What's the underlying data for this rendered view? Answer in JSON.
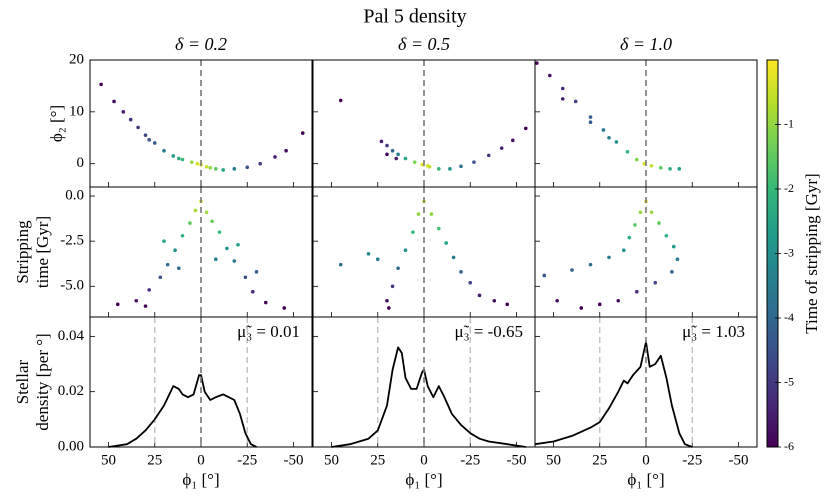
{
  "chart_data": {
    "type": "panel-grid",
    "title": "Pal 5 density",
    "xlabel": "ϕ₁ [°]",
    "xlim": [
      60,
      -60
    ],
    "xticks": [
      50,
      25,
      0,
      -25,
      -50
    ],
    "center_line": 0,
    "colormap": "viridis",
    "rows": [
      {
        "type": "scatter",
        "color_by": "c",
        "ylabel": [
          "ϕ₂ [°]"
        ],
        "ylim": [
          -4.5,
          20
        ],
        "yticks": [
          0,
          10,
          20
        ]
      },
      {
        "type": "scatter",
        "color_by": "y",
        "ylabel": [
          "Stripping",
          "time [Gyr]"
        ],
        "ylim": [
          -6.7,
          0.5
        ],
        "yticks": [
          {
            "value": 0,
            "label": "0.0"
          },
          {
            "value": -2.5,
            "label": "-2.5"
          },
          {
            "value": -5,
            "label": "-5.0"
          }
        ]
      },
      {
        "type": "line",
        "color": "#000000",
        "ylabel": [
          "Stellar",
          "density [per °]"
        ],
        "ylim": [
          0,
          0.047
        ],
        "yticks": [
          {
            "value": 0,
            "label": "0.00"
          },
          {
            "value": 0.02,
            "label": "0.02"
          },
          {
            "value": 0.04,
            "label": "0.04"
          }
        ],
        "guide_lines": [
          25,
          -25
        ]
      }
    ],
    "columns": [
      {
        "title": "δ = 0.2",
        "panels": [
          {
            "x": [
              54,
              47,
              42,
              38,
              34,
              30,
              25,
              20,
              15,
              10,
              5,
              2,
              0,
              -3,
              -8,
              -12,
              -18,
              -25,
              -32,
              -40,
              -46,
              -55,
              28,
              12,
              -5
            ],
            "y": [
              15.3,
              12,
              10,
              8.5,
              7,
              5.5,
              4,
              2.5,
              1.5,
              0.8,
              0.3,
              0,
              -0.2,
              -0.6,
              -1,
              -1.2,
              -1,
              -0.7,
              0,
              1.3,
              2.5,
              5.9,
              4.6,
              1,
              -0.8
            ],
            "c": [
              -6,
              -5.8,
              -5.5,
              -5.2,
              -5,
              -4.8,
              -4.2,
              -3.5,
              -2.8,
              -2,
              -1,
              -0.4,
              -0.2,
              -0.5,
              -1.5,
              -2.5,
              -3.5,
              -4.5,
              -5,
              -5.5,
              -5.8,
              -6,
              -4.5,
              -2.3,
              -1
            ]
          },
          {
            "x": [
              0,
              3,
              -3,
              6,
              -6,
              10,
              -10,
              14,
              -14,
              18,
              -18,
              22,
              -24,
              28,
              -28,
              35,
              -35,
              45,
              -45,
              20,
              -20,
              12,
              -8,
              30,
              -30
            ],
            "y": [
              -0.3,
              -0.8,
              -0.9,
              -1.5,
              -1.4,
              -2.2,
              -2,
              -3,
              -2.9,
              -3.8,
              -3.6,
              -4.5,
              -4.5,
              -5.2,
              -5.3,
              -5.8,
              -5.9,
              -6,
              -6.2,
              -2.5,
              -2.7,
              -4,
              -3.5,
              -6.1,
              -4.2
            ]
          },
          {
            "x": [
              50,
              40,
              35,
              30,
              25,
              20,
              15,
              12,
              10,
              7,
              4,
              1,
              0,
              -2,
              -5,
              -8,
              -12,
              -15,
              -18,
              -21,
              -24,
              -27,
              -30
            ],
            "y": [
              0,
              0.001,
              0.003,
              0.006,
              0.01,
              0.015,
              0.022,
              0.021,
              0.019,
              0.018,
              0.019,
              0.026,
              0.026,
              0.02,
              0.017,
              0.018,
              0.019,
              0.018,
              0.017,
              0.012,
              0.005,
              0.001,
              0
            ],
            "annotation": "μ̃₃ = 0.01"
          }
        ]
      },
      {
        "title": "δ = 0.5",
        "panels": [
          {
            "x": [
              45,
              23,
              20,
              17,
              14,
              10,
              5,
              1,
              -3,
              -8,
              -14,
              -20,
              -27,
              -35,
              -42,
              -48,
              -55,
              20,
              15,
              -2
            ],
            "y": [
              12.2,
              4.3,
              3.5,
              2.5,
              1.8,
              1,
              0.3,
              -0.2,
              -0.6,
              -1,
              -1,
              -0.5,
              0.3,
              1.6,
              3,
              4.5,
              6.8,
              1.8,
              1,
              -0.4
            ],
            "c": [
              -6,
              -5.5,
              -5,
              -4,
              -3.5,
              -2.5,
              -1.2,
              -0.3,
              -0.6,
              -2,
              -3,
              -3.8,
              -4.5,
              -5,
              -5.4,
              -5.7,
              -6,
              -5.8,
              -5.5,
              -0.4
            ]
          },
          {
            "x": [
              0,
              3,
              -4,
              6,
              -8,
              10,
              -12,
              14,
              -16,
              17,
              -20,
              20,
              19,
              -25,
              -30,
              -38,
              -45,
              45,
              25,
              30
            ],
            "y": [
              -0.3,
              -1,
              -1,
              -2,
              -1.8,
              -3,
              -2.6,
              -4,
              -3.4,
              -5,
              -4.2,
              -5.8,
              -6.2,
              -4.8,
              -5.5,
              -5.8,
              -6,
              -3.8,
              -3.5,
              -3.2
            ]
          },
          {
            "x": [
              50,
              40,
              30,
              25,
              20,
              17,
              14,
              12,
              10,
              7,
              4,
              1,
              0,
              -2,
              -5,
              -8,
              -11,
              -15,
              -20,
              -25,
              -30,
              -35,
              -45,
              -55
            ],
            "y": [
              0,
              0.001,
              0.003,
              0.006,
              0.015,
              0.028,
              0.036,
              0.034,
              0.025,
              0.021,
              0.021,
              0.027,
              0.028,
              0.022,
              0.018,
              0.022,
              0.018,
              0.012,
              0.008,
              0.005,
              0.003,
              0.002,
              0.001,
              0
            ],
            "annotation": "μ̃₃ = -0.65"
          }
        ]
      },
      {
        "title": "δ = 1.0",
        "panels": [
          {
            "x": [
              59,
              52,
              45,
              38,
              30,
              23,
              16,
              10,
              5,
              1,
              -3,
              -8,
              -13,
              -18,
              45,
              30,
              20
            ],
            "y": [
              19.4,
              17,
              14.5,
              12,
              9,
              6.5,
              4.2,
              2.3,
              0.8,
              0,
              -0.4,
              -0.8,
              -1,
              -1,
              12.5,
              8,
              5
            ],
            "c": [
              -6,
              -5.7,
              -5.3,
              -4.8,
              -4.2,
              -3.6,
              -3,
              -2.2,
              -1.2,
              -0.3,
              -0.5,
              -1.5,
              -2.2,
              -2.6,
              -5.5,
              -4.3,
              -3.4
            ]
          },
          {
            "x": [
              0,
              3,
              -3,
              6,
              -7,
              9,
              -11,
              -15,
              -17,
              -14,
              -5,
              5,
              15,
              25,
              35,
              12,
              20,
              30,
              40,
              55,
              48
            ],
            "y": [
              -0.3,
              -0.9,
              -0.9,
              -1.6,
              -1.5,
              -2.3,
              -2.2,
              -2.8,
              -3.5,
              -4.2,
              -4.8,
              -5.3,
              -5.8,
              -6,
              -6.2,
              -3,
              -3.4,
              -3.8,
              -4.1,
              -4.4,
              -5.8
            ]
          },
          {
            "x": [
              60,
              50,
              40,
              30,
              25,
              20,
              15,
              12,
              10,
              7,
              3,
              0,
              -2,
              -5,
              -8,
              -11,
              -14,
              -18,
              -21,
              -25
            ],
            "y": [
              0.001,
              0.002,
              0.004,
              0.007,
              0.009,
              0.014,
              0.02,
              0.024,
              0.023,
              0.026,
              0.029,
              0.038,
              0.029,
              0.03,
              0.033,
              0.025,
              0.015,
              0.005,
              0.001,
              0
            ],
            "annotation": "μ̃₃ = 1.03"
          }
        ]
      }
    ],
    "colorbar": {
      "label": "Time of stripping [Gyr]",
      "lim": [
        -6,
        0
      ],
      "ticks": [
        -1,
        -2,
        -3,
        -4,
        -5,
        -6
      ]
    }
  }
}
